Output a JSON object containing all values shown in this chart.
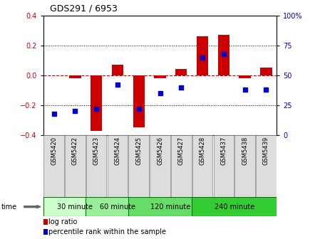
{
  "title": "GDS291 / 6953",
  "samples": [
    "GSM5420",
    "GSM5422",
    "GSM5423",
    "GSM5424",
    "GSM5425",
    "GSM5426",
    "GSM5427",
    "GSM5428",
    "GSM5437",
    "GSM5438",
    "GSM5439"
  ],
  "log_ratio": [
    0.0,
    -0.02,
    -0.37,
    0.07,
    -0.35,
    -0.02,
    0.04,
    0.26,
    0.27,
    -0.02,
    0.05
  ],
  "percentile": [
    18,
    20,
    22,
    42,
    22,
    35,
    40,
    65,
    68,
    38,
    38
  ],
  "bar_color": "#cc0000",
  "dot_color": "#0000cc",
  "zero_line_color": "#cc0000",
  "grid_color": "#000000",
  "ylim": [
    -0.4,
    0.4
  ],
  "y2lim": [
    0,
    100
  ],
  "yticks": [
    -0.4,
    -0.2,
    0.0,
    0.2,
    0.4
  ],
  "y2ticks": [
    0,
    25,
    50,
    75,
    100
  ],
  "y2ticklabels": [
    "0",
    "25",
    "50",
    "75",
    "100%"
  ],
  "groups": [
    {
      "label": "30 minute",
      "start": 0,
      "end": 2,
      "color": "#ccffcc"
    },
    {
      "label": "60 minute",
      "start": 2,
      "end": 4,
      "color": "#99ee99"
    },
    {
      "label": "120 minute",
      "start": 4,
      "end": 7,
      "color": "#66dd66"
    },
    {
      "label": "240 minute",
      "start": 7,
      "end": 10,
      "color": "#33cc33"
    }
  ],
  "time_label": "time",
  "legend_log": "log ratio",
  "legend_pct": "percentile rank within the sample",
  "bar_width": 0.55,
  "sample_box_color": "#dddddd",
  "sample_box_edge": "#888888"
}
